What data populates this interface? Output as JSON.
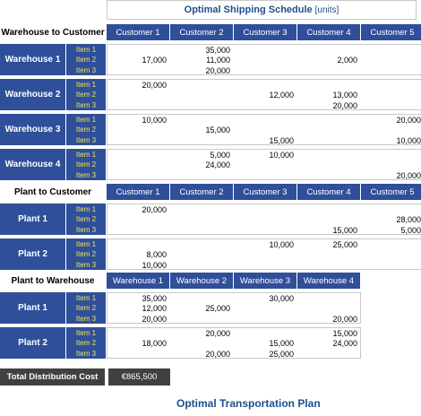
{
  "title": {
    "main": "Optimal Shipping Schedule",
    "unit": "[units]"
  },
  "sections": [
    {
      "label": "Warehouse to Customer",
      "top": 27,
      "headers": [
        "Customer 1",
        "Customer 2",
        "Customer 3",
        "Customer 4",
        "Customer 5"
      ],
      "groups": [
        {
          "name": "Warehouse 1",
          "items": [
            "Item 1",
            "Item 2",
            "Item 3"
          ],
          "values": [
            [
              "",
              "35,000",
              "",
              "",
              ""
            ],
            [
              "17,000",
              "11,000",
              "",
              "2,000",
              ""
            ],
            [
              "",
              "20,000",
              "",
              "",
              ""
            ]
          ]
        },
        {
          "name": "Warehouse 2",
          "items": [
            "Item 1",
            "Item 2",
            "Item 3"
          ],
          "values": [
            [
              "20,000",
              "",
              "",
              "",
              ""
            ],
            [
              "",
              "",
              "12,000",
              "13,000",
              ""
            ],
            [
              "",
              "",
              "",
              "20,000",
              ""
            ]
          ]
        },
        {
          "name": "Warehouse 3",
          "items": [
            "Item 1",
            "Item 2",
            "Item 3"
          ],
          "values": [
            [
              "10,000",
              "",
              "",
              "",
              "20,000"
            ],
            [
              "",
              "15,000",
              "",
              "",
              ""
            ],
            [
              "",
              "",
              "15,000",
              "",
              "10,000"
            ]
          ]
        },
        {
          "name": "Warehouse 4",
          "items": [
            "Item 1",
            "Item 2",
            "Item 3"
          ],
          "values": [
            [
              "",
              "5,000",
              "10,000",
              "",
              ""
            ],
            [
              "",
              "24,000",
              "",
              "",
              ""
            ],
            [
              "",
              "",
              "",
              "",
              "20,000"
            ]
          ]
        }
      ]
    },
    {
      "label": "Plant to Customer",
      "top": 205,
      "headers": [
        "Customer 1",
        "Customer 2",
        "Customer 3",
        "Customer 4",
        "Customer 5"
      ],
      "groups": [
        {
          "name": "Plant 1",
          "items": [
            "Item 1",
            "Item 2",
            "Item 3"
          ],
          "values": [
            [
              "20,000",
              "",
              "",
              "",
              ""
            ],
            [
              "",
              "",
              "",
              "",
              "28,000"
            ],
            [
              "",
              "",
              "",
              "15,000",
              "5,000"
            ]
          ]
        },
        {
          "name": "Plant 2",
          "items": [
            "Item 1",
            "Item 2",
            "Item 3"
          ],
          "values": [
            [
              "",
              "",
              "10,000",
              "25,000",
              ""
            ],
            [
              "8,000",
              "",
              "",
              "",
              ""
            ],
            [
              "10,000",
              "",
              "",
              "",
              ""
            ]
          ]
        }
      ]
    },
    {
      "label": "Plant to Warehouse",
      "top": 304,
      "headers": [
        "Warehouse 1",
        "Warehouse 2",
        "Warehouse 3",
        "Warehouse 4"
      ],
      "groups": [
        {
          "name": "Plant 1",
          "items": [
            "Item 1",
            "Item 2",
            "Item 3"
          ],
          "values": [
            [
              "35,000",
              "",
              "30,000",
              ""
            ],
            [
              "12,000",
              "25,000",
              "",
              ""
            ],
            [
              "20,000",
              "",
              "",
              "20,000"
            ]
          ]
        },
        {
          "name": "Plant 2",
          "items": [
            "Item 1",
            "Item 2",
            "Item 3"
          ],
          "values": [
            [
              "",
              "20,000",
              "",
              "15,000"
            ],
            [
              "18,000",
              "",
              "15,000",
              "24,000"
            ],
            [
              "",
              "20,000",
              "25,000",
              ""
            ]
          ]
        }
      ]
    }
  ],
  "cost": {
    "label": "Total Distribution Cost",
    "value": "€865,500"
  },
  "footer": "Optimal Transportation Plan"
}
